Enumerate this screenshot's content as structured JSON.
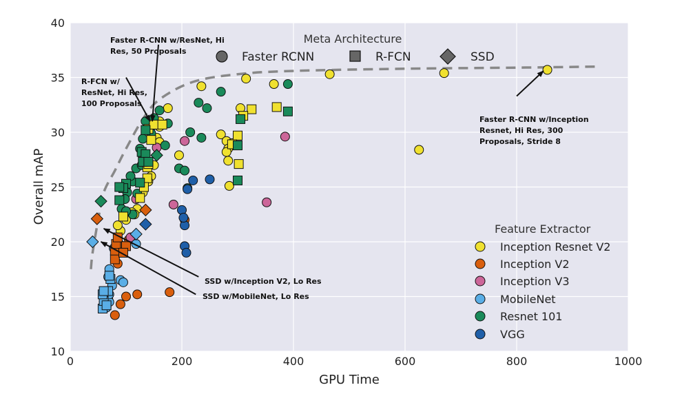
{
  "chart_data": {
    "type": "scatter",
    "title": "",
    "xlabel": "GPU Time",
    "ylabel": "Overall mAP",
    "xlim": [
      0,
      1000
    ],
    "ylim": [
      10,
      40
    ],
    "xticks": [
      0,
      200,
      400,
      600,
      800,
      1000
    ],
    "yticks": [
      10,
      15,
      20,
      25,
      30,
      35,
      40
    ],
    "grid": true,
    "meta_legend": {
      "title": "Meta Architecture",
      "placement": "top-center",
      "entries": [
        {
          "label": "Faster RCNN",
          "shape": "circle"
        },
        {
          "label": "R-FCN",
          "shape": "square"
        },
        {
          "label": "SSD",
          "shape": "diamond"
        }
      ]
    },
    "feature_legend": {
      "title": "Feature Extractor",
      "placement": "bottom-right",
      "entries": [
        {
          "label": "Inception Resnet V2",
          "color": "#f0e130"
        },
        {
          "label": "Inception V2",
          "color": "#d95f0e"
        },
        {
          "label": "Inception V3",
          "color": "#cc6699"
        },
        {
          "label": "MobileNet",
          "color": "#5aaee6"
        },
        {
          "label": "Resnet 101",
          "color": "#1a8a5a"
        },
        {
          "label": "VGG",
          "color": "#1f5fa8"
        }
      ]
    },
    "colors": {
      "Inception Resnet V2": "#f0e130",
      "Inception V2": "#d95f0e",
      "Inception V3": "#cc6699",
      "MobileNet": "#5aaee6",
      "Resnet 101": "#1a8a5a",
      "VGG": "#1f5fa8"
    },
    "frontier": [
      [
        37,
        17.5
      ],
      [
        40,
        19
      ],
      [
        50,
        22
      ],
      [
        60,
        24.5
      ],
      [
        80,
        26.5
      ],
      [
        100,
        28.5
      ],
      [
        130,
        31.2
      ],
      [
        160,
        33
      ],
      [
        220,
        34.6
      ],
      [
        300,
        35.3
      ],
      [
        400,
        35.6
      ],
      [
        600,
        35.8
      ],
      [
        800,
        35.9
      ],
      [
        950,
        36
      ]
    ],
    "series": [
      {
        "feature": "Inception Resnet V2",
        "arch": "faster_rcnn",
        "points": [
          [
            235,
            34.2
          ],
          [
            315,
            34.9
          ],
          [
            365,
            34.4
          ],
          [
            465,
            35.3
          ],
          [
            670,
            35.4
          ],
          [
            855,
            35.7
          ],
          [
            175,
            32.2
          ],
          [
            305,
            32.2
          ],
          [
            270,
            29.8
          ],
          [
            280,
            29.2
          ],
          [
            283,
            28.5
          ],
          [
            280,
            28.2
          ],
          [
            290,
            29
          ],
          [
            283,
            27.4
          ],
          [
            195,
            27.9
          ],
          [
            285,
            25.1
          ],
          [
            625,
            28.4
          ],
          [
            160,
            31
          ],
          [
            160,
            30.5
          ],
          [
            155,
            29.5
          ],
          [
            160,
            29.1
          ],
          [
            150,
            27
          ],
          [
            145,
            26
          ],
          [
            140,
            25.5
          ],
          [
            130,
            24.5
          ],
          [
            120,
            23
          ],
          [
            115,
            22.5
          ],
          [
            110,
            22.7
          ],
          [
            100,
            22
          ],
          [
            90,
            21
          ],
          [
            85,
            21.5
          ]
        ]
      },
      {
        "feature": "Inception Resnet V2",
        "arch": "rfcn",
        "points": [
          [
            325,
            32.1
          ],
          [
            370,
            32.3
          ],
          [
            310,
            31.5
          ],
          [
            300,
            29.7
          ],
          [
            302,
            27.1
          ],
          [
            290,
            28.9
          ],
          [
            140,
            30.3
          ],
          [
            145,
            29.3
          ],
          [
            150,
            30.7
          ],
          [
            165,
            30.7
          ],
          [
            138,
            26.8
          ],
          [
            140,
            27.1
          ],
          [
            138,
            25.8
          ],
          [
            132,
            25
          ],
          [
            125,
            24
          ],
          [
            95,
            22.3
          ]
        ]
      },
      {
        "feature": "Inception V2",
        "arch": "faster_rcnn",
        "points": [
          [
            80,
            13.3
          ],
          [
            90,
            14.3
          ],
          [
            100,
            15
          ],
          [
            120,
            15.2
          ],
          [
            178,
            15.4
          ],
          [
            105,
            20.2
          ],
          [
            205,
            22
          ],
          [
            85,
            18
          ],
          [
            88,
            19.8
          ]
        ]
      },
      {
        "feature": "Inception V2",
        "arch": "rfcn",
        "points": [
          [
            80,
            18.4
          ],
          [
            80,
            19.2
          ],
          [
            82,
            19.8
          ],
          [
            85,
            20.4
          ],
          [
            100,
            19.6
          ],
          [
            95,
            19
          ]
        ]
      },
      {
        "feature": "Inception V2",
        "arch": "ssd",
        "points": [
          [
            48,
            22.1
          ],
          [
            135,
            22.9
          ]
        ]
      },
      {
        "feature": "Inception V3",
        "arch": "faster_rcnn",
        "points": [
          [
            205,
            29.2
          ],
          [
            185,
            23.4
          ],
          [
            352,
            23.6
          ],
          [
            385,
            29.6
          ],
          [
            155,
            28.6
          ],
          [
            118,
            23.9
          ],
          [
            108,
            20.4
          ]
        ]
      },
      {
        "feature": "MobileNet",
        "arch": "faster_rcnn",
        "points": [
          [
            68,
            14.8
          ],
          [
            62,
            15.1
          ],
          [
            60,
            14.5
          ],
          [
            65,
            14
          ],
          [
            70,
            14.5
          ],
          [
            75,
            16
          ],
          [
            68,
            16.8
          ],
          [
            70,
            17.5
          ],
          [
            90,
            16.5
          ],
          [
            95,
            16.3
          ],
          [
            85,
            19
          ],
          [
            118,
            19.8
          ],
          [
            78,
            19.4
          ],
          [
            70,
            15.2
          ],
          [
            63,
            15.5
          ]
        ]
      },
      {
        "feature": "MobileNet",
        "arch": "rfcn",
        "points": [
          [
            58,
            13.9
          ],
          [
            60,
            14.6
          ],
          [
            65,
            14.2
          ],
          [
            58,
            15.2
          ],
          [
            68,
            15.5
          ],
          [
            72,
            16.6
          ],
          [
            70,
            16.9
          ],
          [
            60,
            15.5
          ]
        ]
      },
      {
        "feature": "MobileNet",
        "arch": "ssd",
        "points": [
          [
            40,
            20
          ],
          [
            118,
            20.7
          ]
        ]
      },
      {
        "feature": "Resnet 101",
        "arch": "faster_rcnn",
        "points": [
          [
            160,
            32
          ],
          [
            230,
            32.7
          ],
          [
            270,
            33.7
          ],
          [
            390,
            34.4
          ],
          [
            245,
            32.2
          ],
          [
            215,
            30
          ],
          [
            235,
            29.5
          ],
          [
            195,
            26.7
          ],
          [
            205,
            26.5
          ],
          [
            210,
            24.9
          ],
          [
            175,
            30.8
          ],
          [
            170,
            28.8
          ],
          [
            150,
            31.3
          ],
          [
            145,
            30.5
          ],
          [
            140,
            30.5
          ],
          [
            135,
            31
          ],
          [
            145,
            29.9
          ],
          [
            130,
            29.4
          ],
          [
            125,
            28.5
          ],
          [
            130,
            27.8
          ],
          [
            118,
            26.7
          ],
          [
            128,
            27
          ],
          [
            112,
            25.5
          ],
          [
            108,
            26
          ],
          [
            102,
            24.5
          ],
          [
            98,
            23.9
          ],
          [
            92,
            23
          ],
          [
            120,
            24.4
          ],
          [
            112,
            22.5
          ],
          [
            100,
            22.8
          ]
        ]
      },
      {
        "feature": "Resnet 101",
        "arch": "rfcn",
        "points": [
          [
            390,
            31.9
          ],
          [
            305,
            31.2
          ],
          [
            300,
            28.8
          ],
          [
            300,
            25.6
          ],
          [
            135,
            30.2
          ],
          [
            128,
            28.2
          ],
          [
            135,
            28
          ],
          [
            130,
            27.3
          ],
          [
            140,
            27.3
          ],
          [
            125,
            25.4
          ],
          [
            100,
            25.3
          ],
          [
            95,
            24.9
          ],
          [
            88,
            23.8
          ],
          [
            88,
            25
          ]
        ]
      },
      {
        "feature": "Resnet 101",
        "arch": "ssd",
        "points": [
          [
            55,
            23.7
          ],
          [
            155,
            27.9
          ]
        ]
      },
      {
        "feature": "VGG",
        "arch": "faster_rcnn",
        "points": [
          [
            250,
            25.7
          ],
          [
            220,
            25.6
          ],
          [
            210,
            24.8
          ],
          [
            200,
            22.9
          ],
          [
            205,
            21.5
          ],
          [
            203,
            22.2
          ],
          [
            205,
            19.6
          ],
          [
            208,
            19
          ]
        ]
      },
      {
        "feature": "VGG",
        "arch": "ssd",
        "points": [
          [
            135,
            21.6
          ]
        ]
      }
    ],
    "annotations": [
      {
        "lines": [
          "Faster R-CNN w/ResNet, Hi",
          "Res, 50 Proposals"
        ],
        "target": [
          147,
          31
        ],
        "arrow_start": [
          158,
          38
        ]
      },
      {
        "lines": [
          "R-FCN w/",
          "ResNet, Hi Res,",
          "100 Proposals"
        ],
        "target": [
          143,
          31
        ],
        "arrow_start": [
          100,
          35
        ]
      },
      {
        "lines": [
          "Faster R-CNN w/Inception",
          "Resnet, Hi Res, 300",
          "Proposals, Stride 8"
        ],
        "target": [
          848,
          35.6
        ],
        "arrow_start": [
          800,
          33.3
        ]
      },
      {
        "lines": [
          "SSD w/Inception V2, Lo Res"
        ],
        "target": [
          60,
          21.2
        ],
        "arrow_start": [
          230,
          16.8
        ]
      },
      {
        "lines": [
          "SSD w/MobileNet, Lo Res"
        ],
        "target": [
          55,
          20
        ],
        "arrow_start": [
          225,
          15.2
        ]
      }
    ]
  }
}
